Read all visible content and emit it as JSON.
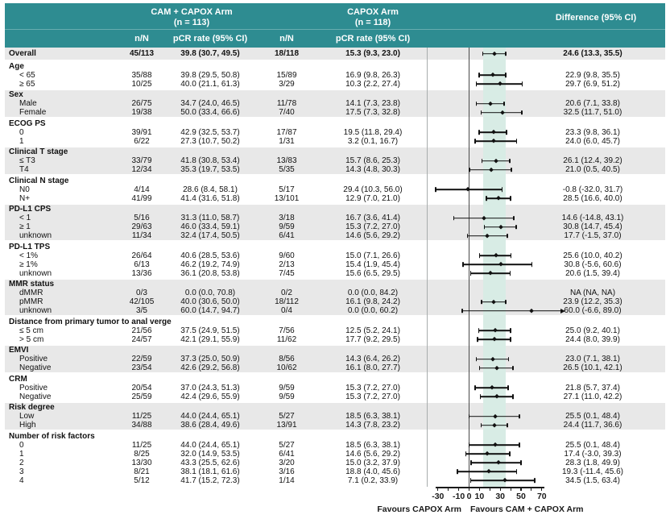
{
  "header": {
    "arm1_line1": "CAM + CAPOX Arm",
    "arm1_line2": "(n = 113)",
    "arm2_line1": "CAPOX Arm",
    "arm2_line2": "(n = 118)",
    "difference": "Difference (95% CI)",
    "sub_nN": "n/N",
    "sub_pcr": "pCR rate (95% CI)"
  },
  "colors": {
    "header_teal": "#2e8c91",
    "stripe_gray": "#e8e8e8",
    "band_mint": "#d8ece5",
    "zero_line": "#4a4a4a",
    "divider_gray": "#a8adad",
    "ink": "#111111"
  },
  "chart_data": {
    "type": "forest",
    "axis": {
      "tick_values": [
        -30,
        -20,
        -10,
        0,
        10,
        20,
        30,
        40,
        50,
        60,
        70
      ],
      "labeled_ticks": [
        {
          "v": -30,
          "label": "-30"
        },
        {
          "v": -10,
          "label": "-10"
        },
        {
          "v": 0,
          "label": "0"
        },
        {
          "v": 10,
          "label": "10"
        },
        {
          "v": 30,
          "label": "30"
        },
        {
          "v": 50,
          "label": "50"
        },
        {
          "v": 70,
          "label": "70"
        }
      ],
      "visible_range": [
        -30,
        70
      ],
      "favours_left": "Favours CAPOX Arm",
      "favours_right": "Favours CAM + CAPOX Arm"
    },
    "shaded_band": [
      13.3,
      35.5
    ],
    "rows": [
      {
        "kind": "data",
        "overall": true,
        "indent": false,
        "shade": true,
        "label": "Overall",
        "nN1": "45/113",
        "pcr1": "39.8 (30.7, 49.5)",
        "nN2": "18/118",
        "pcr2": "15.3 (9.3, 23.0)",
        "diff": "24.6 (13.3, 35.5)",
        "est": 24.6,
        "lo": 13.3,
        "hi": 35.5,
        "arrow": false
      },
      {
        "kind": "group",
        "shade": false,
        "label": "Age"
      },
      {
        "kind": "data",
        "indent": true,
        "shade": false,
        "label": "< 65",
        "nN1": "35/88",
        "pcr1": "39.8 (29.5, 50.8)",
        "nN2": "15/89",
        "pcr2": "16.9 (9.8, 26.3)",
        "diff": "22.9 (9.8, 35.5)",
        "est": 22.9,
        "lo": 9.8,
        "hi": 35.5,
        "arrow": false
      },
      {
        "kind": "data",
        "indent": true,
        "shade": false,
        "label": "≥ 65",
        "nN1": "10/25",
        "pcr1": "40.0 (21.1, 61.3)",
        "nN2": "3/29",
        "pcr2": "10.3 (2.2, 27.4)",
        "diff": "29.7 (6.9, 51.2)",
        "est": 29.7,
        "lo": 6.9,
        "hi": 51.2,
        "arrow": false
      },
      {
        "kind": "group",
        "shade": true,
        "label": "Sex"
      },
      {
        "kind": "data",
        "indent": true,
        "shade": true,
        "label": "Male",
        "nN1": "26/75",
        "pcr1": "34.7 (24.0, 46.5)",
        "nN2": "11/78",
        "pcr2": "14.1 (7.3, 23.8)",
        "diff": "20.6 (7.1, 33.8)",
        "est": 20.6,
        "lo": 7.1,
        "hi": 33.8,
        "arrow": false
      },
      {
        "kind": "data",
        "indent": true,
        "shade": true,
        "label": "Female",
        "nN1": "19/38",
        "pcr1": "50.0 (33.4, 66.6)",
        "nN2": "7/40",
        "pcr2": "17.5 (7.3, 32.8)",
        "diff": "32.5 (11.7, 51.0)",
        "est": 32.5,
        "lo": 11.7,
        "hi": 51.0,
        "arrow": false
      },
      {
        "kind": "group",
        "shade": false,
        "label": "ECOG PS"
      },
      {
        "kind": "data",
        "indent": true,
        "shade": false,
        "label": "0",
        "nN1": "39/91",
        "pcr1": "42.9 (32.5, 53.7)",
        "nN2": "17/87",
        "pcr2": "19.5 (11.8, 29.4)",
        "diff": "23.3 (9.8, 36.1)",
        "est": 23.3,
        "lo": 9.8,
        "hi": 36.1,
        "arrow": false
      },
      {
        "kind": "data",
        "indent": true,
        "shade": false,
        "label": "1",
        "nN1": "6/22",
        "pcr1": "27.3 (10.7, 50.2)",
        "nN2": "1/31",
        "pcr2": "3.2 (0.1, 16.7)",
        "diff": "24.0 (6.0, 45.7)",
        "est": 24.0,
        "lo": 6.0,
        "hi": 45.7,
        "arrow": false
      },
      {
        "kind": "group",
        "shade": true,
        "label": "Clinical T stage"
      },
      {
        "kind": "data",
        "indent": true,
        "shade": true,
        "label": "≤ T3",
        "nN1": "33/79",
        "pcr1": "41.8 (30.8, 53.4)",
        "nN2": "13/83",
        "pcr2": "15.7 (8.6, 25.3)",
        "diff": "26.1 (12.4, 39.2)",
        "est": 26.1,
        "lo": 12.4,
        "hi": 39.2,
        "arrow": false
      },
      {
        "kind": "data",
        "indent": true,
        "shade": true,
        "label": "T4",
        "nN1": "12/34",
        "pcr1": "35.3 (19.7, 53.5)",
        "nN2": "5/35",
        "pcr2": "14.3 (4.8, 30.3)",
        "diff": "21.0 (0.5, 40.5)",
        "est": 21.0,
        "lo": 0.5,
        "hi": 40.5,
        "arrow": false
      },
      {
        "kind": "group",
        "shade": false,
        "label": "Clinical N stage"
      },
      {
        "kind": "data",
        "indent": true,
        "shade": false,
        "label": "N0",
        "nN1": "4/14",
        "pcr1": "28.6 (8.4, 58.1)",
        "nN2": "5/17",
        "pcr2": "29.4 (10.3, 56.0)",
        "diff": "-0.8 (-32.0, 31.7)",
        "est": -0.8,
        "lo": -32.0,
        "hi": 31.7,
        "arrow": false
      },
      {
        "kind": "data",
        "indent": true,
        "shade": false,
        "label": "N+",
        "nN1": "41/99",
        "pcr1": "41.4 (31.6, 51.8)",
        "nN2": "13/101",
        "pcr2": "12.9 (7.0, 21.0)",
        "diff": "28.5 (16.6, 40.0)",
        "est": 28.5,
        "lo": 16.6,
        "hi": 40.0,
        "arrow": false
      },
      {
        "kind": "group",
        "shade": true,
        "label": "PD-L1 CPS"
      },
      {
        "kind": "data",
        "indent": true,
        "shade": true,
        "label": "< 1",
        "nN1": "5/16",
        "pcr1": "31.3 (11.0, 58.7)",
        "nN2": "3/18",
        "pcr2": "16.7 (3.6, 41.4)",
        "diff": "14.6 (-14.8, 43.1)",
        "est": 14.6,
        "lo": -14.8,
        "hi": 43.1,
        "arrow": false
      },
      {
        "kind": "data",
        "indent": true,
        "shade": true,
        "label": "≥ 1",
        "nN1": "29/63",
        "pcr1": "46.0 (33.4, 59.1)",
        "nN2": "9/59",
        "pcr2": "15.3 (7.2, 27.0)",
        "diff": "30.8 (14.7, 45.4)",
        "est": 30.8,
        "lo": 14.7,
        "hi": 45.4,
        "arrow": false
      },
      {
        "kind": "data",
        "indent": true,
        "shade": true,
        "label": "unknown",
        "nN1": "11/34",
        "pcr1": "32.4 (17.4, 50.5)",
        "nN2": "6/41",
        "pcr2": "14.6 (5.6, 29.2)",
        "diff": "17.7 (-1.5, 37.0)",
        "est": 17.7,
        "lo": -1.5,
        "hi": 37.0,
        "arrow": false
      },
      {
        "kind": "group",
        "shade": false,
        "label": "PD-L1 TPS"
      },
      {
        "kind": "data",
        "indent": true,
        "shade": false,
        "label": "< 1%",
        "nN1": "26/64",
        "pcr1": "40.6 (28.5, 53.6)",
        "nN2": "9/60",
        "pcr2": "15.0 (7.1, 26.6)",
        "diff": "25.6 (10.0, 40.2)",
        "est": 25.6,
        "lo": 10.0,
        "hi": 40.2,
        "arrow": false
      },
      {
        "kind": "data",
        "indent": true,
        "shade": false,
        "label": "≥ 1%",
        "nN1": "6/13",
        "pcr1": "46.2 (19.2, 74.9)",
        "nN2": "2/13",
        "pcr2": "15.4 (1.9, 45.4)",
        "diff": "30.8 (-5.6, 60.6)",
        "est": 30.8,
        "lo": -5.6,
        "hi": 60.6,
        "arrow": false
      },
      {
        "kind": "data",
        "indent": true,
        "shade": false,
        "label": "unknown",
        "nN1": "13/36",
        "pcr1": "36.1 (20.8, 53.8)",
        "nN2": "7/45",
        "pcr2": "15.6 (6.5, 29.5)",
        "diff": "20.6 (1.5, 39.4)",
        "est": 20.6,
        "lo": 1.5,
        "hi": 39.4,
        "arrow": false
      },
      {
        "kind": "group",
        "shade": true,
        "label": "MMR status"
      },
      {
        "kind": "data",
        "indent": true,
        "shade": true,
        "label": "dMMR",
        "nN1": "0/3",
        "pcr1": "0.0 (0.0, 70.8)",
        "nN2": "0/2",
        "pcr2": "0.0 (0.0, 84.2)",
        "diff": "NA (NA, NA)",
        "est": null,
        "lo": null,
        "hi": null,
        "arrow": false
      },
      {
        "kind": "data",
        "indent": true,
        "shade": true,
        "label": "pMMR",
        "nN1": "42/105",
        "pcr1": "40.0 (30.6, 50.0)",
        "nN2": "18/112",
        "pcr2": "16.1 (9.8, 24.2)",
        "diff": "23.9 (12.2, 35.3)",
        "est": 23.9,
        "lo": 12.2,
        "hi": 35.3,
        "arrow": false
      },
      {
        "kind": "data",
        "indent": true,
        "shade": true,
        "label": "unknown",
        "nN1": "3/5",
        "pcr1": "60.0 (14.7, 94.7)",
        "nN2": "0/4",
        "pcr2": "0.0 (0.0, 60.2)",
        "diff": "60.0 (-6.6, 89.0)",
        "est": 60.0,
        "lo": -6.6,
        "hi": 89.0,
        "arrow": true
      },
      {
        "kind": "group",
        "shade": false,
        "label": "Distance from primary tumor to anal verge"
      },
      {
        "kind": "data",
        "indent": true,
        "shade": false,
        "label": "≤ 5 cm",
        "nN1": "21/56",
        "pcr1": "37.5 (24.9, 51.5)",
        "nN2": "7/56",
        "pcr2": "12.5 (5.2, 24.1)",
        "diff": "25.0 (9.2, 40.1)",
        "est": 25.0,
        "lo": 9.2,
        "hi": 40.1,
        "arrow": false
      },
      {
        "kind": "data",
        "indent": true,
        "shade": false,
        "label": "> 5 cm",
        "nN1": "24/57",
        "pcr1": "42.1 (29.1, 55.9)",
        "nN2": "11/62",
        "pcr2": "17.7 (9.2, 29.5)",
        "diff": "24.4 (8.0, 39.9)",
        "est": 24.4,
        "lo": 8.0,
        "hi": 39.9,
        "arrow": false
      },
      {
        "kind": "group",
        "shade": true,
        "label": "EMVI"
      },
      {
        "kind": "data",
        "indent": true,
        "shade": true,
        "label": "Positive",
        "nN1": "22/59",
        "pcr1": "37.3 (25.0, 50.9)",
        "nN2": "8/56",
        "pcr2": "14.3 (6.4, 26.2)",
        "diff": "23.0 (7.1, 38.1)",
        "est": 23.0,
        "lo": 7.1,
        "hi": 38.1,
        "arrow": false
      },
      {
        "kind": "data",
        "indent": true,
        "shade": true,
        "label": "Negative",
        "nN1": "23/54",
        "pcr1": "42.6 (29.2, 56.8)",
        "nN2": "10/62",
        "pcr2": "16.1 (8.0, 27.7)",
        "diff": "26.5 (10.1, 42.1)",
        "est": 26.5,
        "lo": 10.1,
        "hi": 42.1,
        "arrow": false
      },
      {
        "kind": "group",
        "shade": false,
        "label": "CRM"
      },
      {
        "kind": "data",
        "indent": true,
        "shade": false,
        "label": "Positive",
        "nN1": "20/54",
        "pcr1": "37.0 (24.3, 51.3)",
        "nN2": "9/59",
        "pcr2": "15.3 (7.2, 27.0)",
        "diff": "21.8 (5.7, 37.4)",
        "est": 21.8,
        "lo": 5.7,
        "hi": 37.4,
        "arrow": false
      },
      {
        "kind": "data",
        "indent": true,
        "shade": false,
        "label": "Negative",
        "nN1": "25/59",
        "pcr1": "42.4 (29.6, 55.9)",
        "nN2": "9/59",
        "pcr2": "15.3 (7.2, 27.0)",
        "diff": "27.1 (11.0, 42.2)",
        "est": 27.1,
        "lo": 11.0,
        "hi": 42.2,
        "arrow": false
      },
      {
        "kind": "group",
        "shade": true,
        "label": "Risk degree"
      },
      {
        "kind": "data",
        "indent": true,
        "shade": true,
        "label": "Low",
        "nN1": "11/25",
        "pcr1": "44.0 (24.4, 65.1)",
        "nN2": "5/27",
        "pcr2": "18.5 (6.3, 38.1)",
        "diff": "25.5 (0.1, 48.4)",
        "est": 25.5,
        "lo": 0.1,
        "hi": 48.4,
        "arrow": false
      },
      {
        "kind": "data",
        "indent": true,
        "shade": true,
        "label": "High",
        "nN1": "34/88",
        "pcr1": "38.6 (28.4, 49.6)",
        "nN2": "13/91",
        "pcr2": "14.3 (7.8, 23.2)",
        "diff": "24.4 (11.7, 36.6)",
        "est": 24.4,
        "lo": 11.7,
        "hi": 36.6,
        "arrow": false
      },
      {
        "kind": "group",
        "shade": false,
        "label": "Number of risk factors"
      },
      {
        "kind": "data",
        "indent": true,
        "shade": false,
        "label": "0",
        "nN1": "11/25",
        "pcr1": "44.0 (24.4, 65.1)",
        "nN2": "5/27",
        "pcr2": "18.5 (6.3, 38.1)",
        "diff": "25.5 (0.1, 48.4)",
        "est": 25.5,
        "lo": 0.1,
        "hi": 48.4,
        "arrow": false
      },
      {
        "kind": "data",
        "indent": true,
        "shade": false,
        "label": "1",
        "nN1": "8/25",
        "pcr1": "32.0 (14.9, 53.5)",
        "nN2": "6/41",
        "pcr2": "14.6 (5.6, 29.2)",
        "diff": "17.4 (-3.0, 39.3)",
        "est": 17.4,
        "lo": -3.0,
        "hi": 39.3,
        "arrow": false
      },
      {
        "kind": "data",
        "indent": true,
        "shade": false,
        "label": "2",
        "nN1": "13/30",
        "pcr1": "43.3 (25.5, 62.6)",
        "nN2": "3/20",
        "pcr2": "15.0 (3.2, 37.9)",
        "diff": "28.3 (1.8, 49.9)",
        "est": 28.3,
        "lo": 1.8,
        "hi": 49.9,
        "arrow": false
      },
      {
        "kind": "data",
        "indent": true,
        "shade": false,
        "label": "3",
        "nN1": "8/21",
        "pcr1": "38.1 (18.1, 61.6)",
        "nN2": "3/16",
        "pcr2": "18.8 (4.0, 45.6)",
        "diff": "19.3 (-11.4, 45.6)",
        "est": 19.3,
        "lo": -11.4,
        "hi": 45.6,
        "arrow": false
      },
      {
        "kind": "data",
        "indent": true,
        "shade": false,
        "label": "4",
        "nN1": "5/12",
        "pcr1": "41.7 (15.2, 72.3)",
        "nN2": "1/14",
        "pcr2": "7.1 (0.2, 33.9)",
        "diff": "34.5 (1.5, 63.4)",
        "est": 34.5,
        "lo": 1.5,
        "hi": 63.4,
        "arrow": false
      }
    ]
  }
}
